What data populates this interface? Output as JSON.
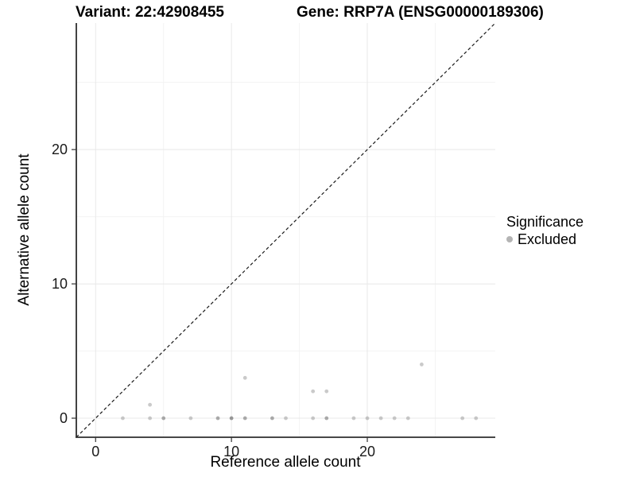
{
  "header": {
    "variant_title": "Variant: 22:42908455",
    "gene_title": "Gene: RRP7A (ENSG00000189306)"
  },
  "legend": {
    "title": "Significance",
    "items": [
      {
        "label": "Excluded",
        "color": "#b4b4b4"
      }
    ]
  },
  "chart_data": {
    "type": "scatter",
    "title": "Variant: 22:42908455 — Gene: RRP7A (ENSG00000189306)",
    "xlabel": "Reference allele count",
    "ylabel": "Alternative allele count",
    "xlim": [
      -1.42,
      29.42
    ],
    "ylim": [
      -1.42,
      29.42
    ],
    "x_ticks": [
      0,
      10,
      20
    ],
    "y_ticks": [
      0,
      10,
      20
    ],
    "x_minor_ticks": [
      5,
      15,
      25
    ],
    "y_minor_ticks": [
      5,
      15,
      25
    ],
    "grid": true,
    "legend_position": "right",
    "identity_line": {
      "style": "dashed",
      "from": [
        -1.42,
        -1.42
      ],
      "to": [
        29.42,
        29.42
      ],
      "color": "#1a1a1a"
    },
    "point_color": "#808080",
    "point_base_opacity": 0.42,
    "series": [
      {
        "name": "Excluded",
        "points": [
          {
            "x": 2,
            "y": 0,
            "n": 1
          },
          {
            "x": 4,
            "y": 0,
            "n": 1
          },
          {
            "x": 4,
            "y": 1,
            "n": 1
          },
          {
            "x": 5,
            "y": 0,
            "n": 2
          },
          {
            "x": 7,
            "y": 0,
            "n": 1
          },
          {
            "x": 9,
            "y": 0,
            "n": 2
          },
          {
            "x": 10,
            "y": 0,
            "n": 3
          },
          {
            "x": 11,
            "y": 0,
            "n": 2
          },
          {
            "x": 11,
            "y": 3,
            "n": 1
          },
          {
            "x": 13,
            "y": 0,
            "n": 2
          },
          {
            "x": 14,
            "y": 0,
            "n": 1
          },
          {
            "x": 16,
            "y": 0,
            "n": 1
          },
          {
            "x": 16,
            "y": 2,
            "n": 1
          },
          {
            "x": 17,
            "y": 0,
            "n": 2
          },
          {
            "x": 17,
            "y": 2,
            "n": 1
          },
          {
            "x": 19,
            "y": 0,
            "n": 1
          },
          {
            "x": 20,
            "y": 0,
            "n": 1
          },
          {
            "x": 21,
            "y": 0,
            "n": 1
          },
          {
            "x": 22,
            "y": 0,
            "n": 1
          },
          {
            "x": 23,
            "y": 0,
            "n": 1
          },
          {
            "x": 24,
            "y": 4,
            "n": 1
          },
          {
            "x": 27,
            "y": 0,
            "n": 1
          },
          {
            "x": 28,
            "y": 0,
            "n": 1
          }
        ]
      }
    ],
    "style": {
      "major_grid_color": "#e8e8e8",
      "minor_grid_color": "#f3f3f3",
      "axis_line_color": "#2e2e2e",
      "tick_color": "#333333",
      "tick_label_color": "#1a1a1a"
    }
  }
}
